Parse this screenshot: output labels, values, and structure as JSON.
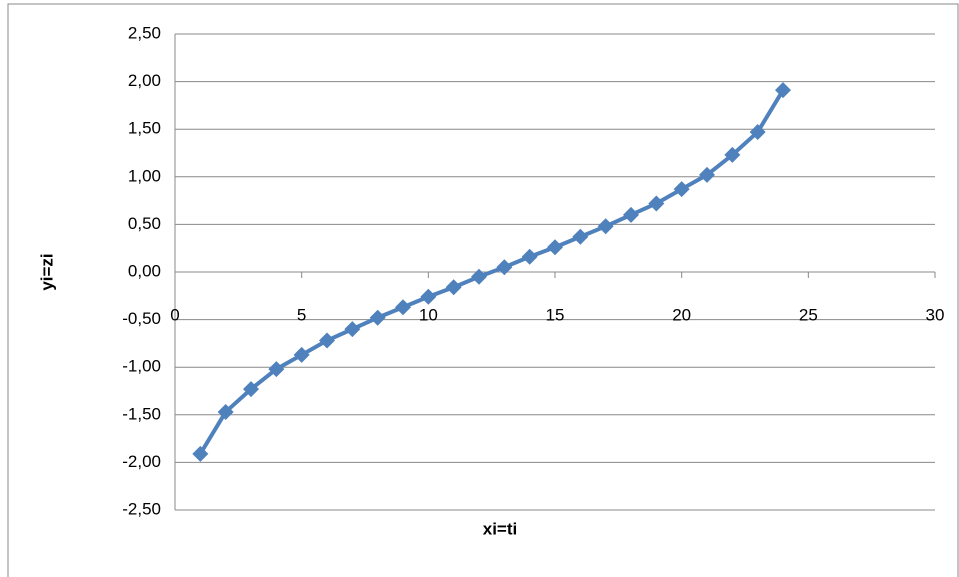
{
  "chart_data": {
    "type": "line",
    "x_label": "xi=ti",
    "y_label": "yi=zi",
    "series": [
      {
        "name": null,
        "color": "#4f81bd",
        "x": [
          1,
          2,
          3,
          4,
          5,
          6,
          7,
          8,
          9,
          10,
          11,
          12,
          13,
          14,
          15,
          16,
          17,
          18,
          19,
          20,
          21,
          22,
          23,
          24
        ],
        "values": [
          -1.91,
          -1.47,
          -1.23,
          -1.02,
          -0.87,
          -0.72,
          -0.6,
          -0.48,
          -0.37,
          -0.26,
          -0.16,
          -0.05,
          0.05,
          0.16,
          0.26,
          0.37,
          0.48,
          0.6,
          0.72,
          0.87,
          1.02,
          1.23,
          1.47,
          1.91
        ]
      }
    ],
    "xlim": [
      0,
      30
    ],
    "xticks": [
      0,
      5,
      10,
      15,
      20,
      25,
      30
    ],
    "ylim": [
      -2.5,
      2.5
    ],
    "yticks": [
      {
        "value": -2.5,
        "label": "-2,50"
      },
      {
        "value": -2,
        "label": "-2,00"
      },
      {
        "value": -1.5,
        "label": "-1,50"
      },
      {
        "value": -1,
        "label": "-1,00"
      },
      {
        "value": -0.5,
        "label": "-0,50"
      },
      {
        "value": 0,
        "label": "0,00"
      },
      {
        "value": 0.5,
        "label": "0,50"
      },
      {
        "value": 1,
        "label": "1,00"
      },
      {
        "value": 1.5,
        "label": "1,50"
      },
      {
        "value": 2,
        "label": "2,00"
      },
      {
        "value": 2.5,
        "label": "2,50"
      }
    ],
    "grid": true
  }
}
